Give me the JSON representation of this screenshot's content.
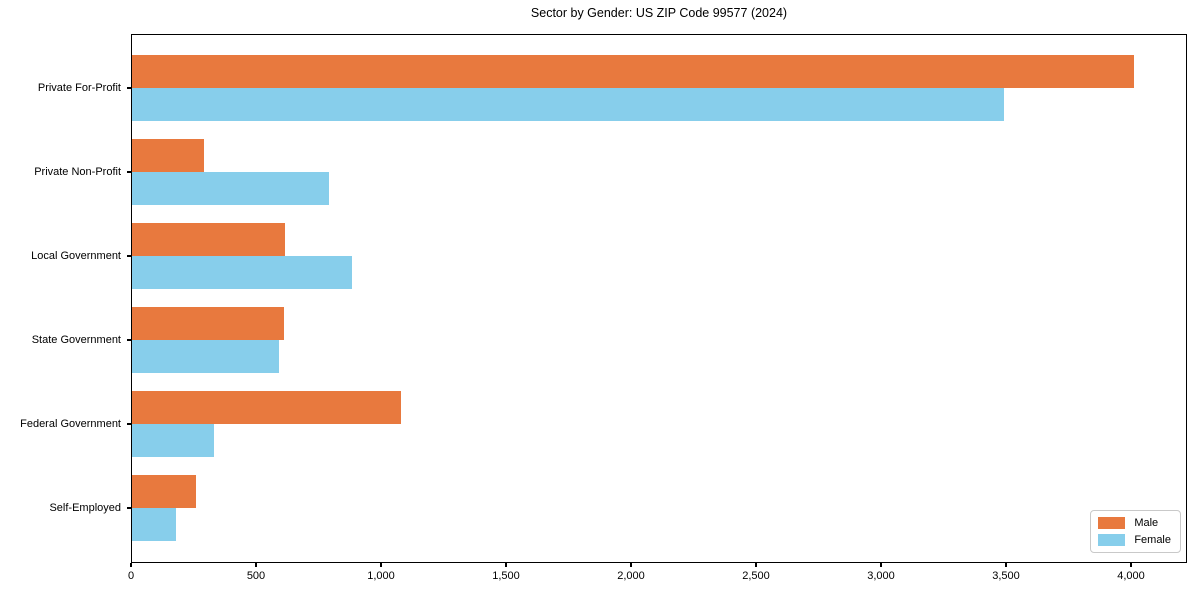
{
  "chart": {
    "title": "Sector by Gender: US ZIP Code 99577 (2024)",
    "colors": {
      "male_bar": "#e8793e",
      "female_bar": "#87ceeb",
      "axis": "#000000",
      "text": "#000000",
      "legend_border": "#c9c9c9",
      "background": "#ffffff"
    }
  },
  "chart_data": {
    "type": "bar",
    "orientation": "horizontal",
    "title": "Sector by Gender: US ZIP Code 99577 (2024)",
    "categories": [
      "Private For-Profit",
      "Private Non-Profit",
      "Local Government",
      "State Government",
      "Federal Government",
      "Self-Employed"
    ],
    "series": [
      {
        "name": "Male",
        "color": "#e8793e",
        "values": [
          4010,
          290,
          615,
          610,
          1080,
          260
        ]
      },
      {
        "name": "Female",
        "color": "#87ceeb",
        "values": [
          3490,
          790,
          885,
          590,
          330,
          180
        ]
      }
    ],
    "xlabel": "",
    "ylabel": "",
    "xlim": [
      0,
      4224
    ],
    "xticks": [
      0,
      500,
      1000,
      1500,
      2000,
      2500,
      3000,
      3500,
      4000
    ],
    "xtick_labels": [
      "0",
      "500",
      "1,000",
      "1,500",
      "2,000",
      "2,500",
      "3,000",
      "3,500",
      "4,000"
    ],
    "grid": false,
    "legend": {
      "position": "lower right",
      "entries": [
        "Male",
        "Female"
      ]
    }
  }
}
